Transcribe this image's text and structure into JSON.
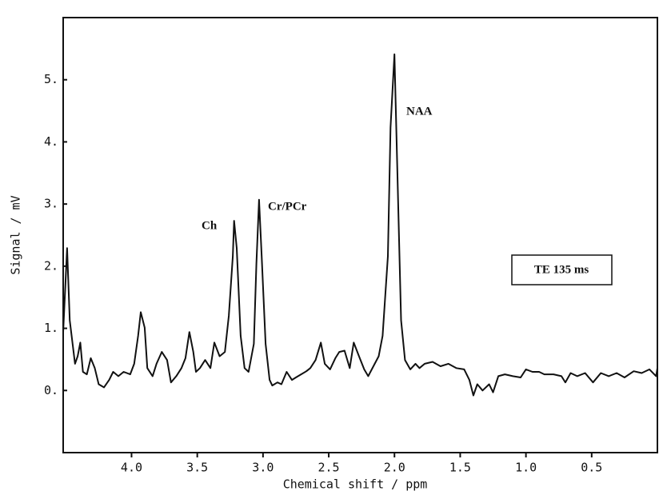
{
  "chart_data": {
    "type": "line",
    "xlabel": "Chemical shift / ppm",
    "ylabel": "Signal / mV",
    "annotations": [
      "Ch",
      "Cr/PCr",
      "NAA",
      "TE 135 ms"
    ],
    "color": "#111111",
    "xlim": [
      4.52,
      0
    ],
    "ylim": [
      -1,
      6
    ],
    "xticks": [
      {
        "value": 4,
        "label": "4.0"
      },
      {
        "value": 3.5,
        "label": "3.5"
      },
      {
        "value": 3,
        "label": "3.0"
      },
      {
        "value": 2.5,
        "label": "2.5"
      },
      {
        "value": 2,
        "label": "2.0"
      },
      {
        "value": 1.5,
        "label": "1.5"
      },
      {
        "value": 1,
        "label": "1.0"
      },
      {
        "value": 0.5,
        "label": "0.5"
      }
    ],
    "yticks": [
      {
        "value": 0,
        "label": "0."
      },
      {
        "value": 1,
        "label": "1."
      },
      {
        "value": 2,
        "label": "2."
      },
      {
        "value": 3,
        "label": "3."
      },
      {
        "value": 4,
        "label": "4."
      },
      {
        "value": 5,
        "label": "5."
      }
    ],
    "x": [
      4.52,
      4.49,
      4.47,
      4.43,
      4.41,
      4.39,
      4.37,
      4.34,
      4.31,
      4.28,
      4.25,
      4.21,
      4.17,
      4.14,
      4.1,
      4.06,
      4.01,
      3.98,
      3.95,
      3.93,
      3.9,
      3.88,
      3.84,
      3.81,
      3.77,
      3.73,
      3.7,
      3.66,
      3.62,
      3.59,
      3.56,
      3.53,
      3.51,
      3.48,
      3.44,
      3.4,
      3.37,
      3.33,
      3.29,
      3.26,
      3.23,
      3.22,
      3.2,
      3.17,
      3.14,
      3.11,
      3.07,
      3.05,
      3.03,
      3.01,
      2.98,
      2.95,
      2.93,
      2.89,
      2.86,
      2.82,
      2.78,
      2.75,
      2.71,
      2.67,
      2.64,
      2.6,
      2.56,
      2.53,
      2.49,
      2.45,
      2.42,
      2.38,
      2.34,
      2.31,
      2.27,
      2.23,
      2.2,
      2.16,
      2.12,
      2.09,
      2.05,
      2.03,
      2.0,
      1.98,
      1.95,
      1.92,
      1.88,
      1.84,
      1.81,
      1.77,
      1.71,
      1.65,
      1.59,
      1.53,
      1.47,
      1.43,
      1.4,
      1.37,
      1.33,
      1.28,
      1.25,
      1.21,
      1.16,
      1.1,
      1.04,
      1.0,
      0.95,
      0.9,
      0.86,
      0.79,
      0.73,
      0.7,
      0.66,
      0.61,
      0.55,
      0.49,
      0.43,
      0.37,
      0.31,
      0.25,
      0.18,
      0.12,
      0.06,
      0.01,
      0.0
    ],
    "values": [
      0.94,
      2.29,
      1.13,
      0.43,
      0.55,
      0.77,
      0.3,
      0.26,
      0.52,
      0.36,
      0.1,
      0.05,
      0.17,
      0.3,
      0.23,
      0.3,
      0.26,
      0.43,
      0.88,
      1.26,
      1.01,
      0.36,
      0.23,
      0.43,
      0.62,
      0.49,
      0.13,
      0.23,
      0.36,
      0.52,
      0.94,
      0.62,
      0.3,
      0.36,
      0.49,
      0.36,
      0.77,
      0.55,
      0.62,
      1.2,
      2.16,
      2.73,
      2.29,
      0.88,
      0.36,
      0.3,
      0.75,
      2.04,
      3.07,
      2.16,
      0.75,
      0.17,
      0.08,
      0.13,
      0.1,
      0.3,
      0.17,
      0.21,
      0.26,
      0.31,
      0.36,
      0.49,
      0.77,
      0.43,
      0.34,
      0.52,
      0.62,
      0.64,
      0.36,
      0.77,
      0.55,
      0.34,
      0.23,
      0.39,
      0.55,
      0.88,
      2.16,
      4.23,
      5.41,
      3.71,
      1.13,
      0.49,
      0.34,
      0.43,
      0.36,
      0.43,
      0.46,
      0.39,
      0.43,
      0.36,
      0.34,
      0.17,
      -0.08,
      0.1,
      0.0,
      0.1,
      -0.03,
      0.23,
      0.26,
      0.23,
      0.21,
      0.34,
      0.3,
      0.3,
      0.26,
      0.26,
      0.23,
      0.13,
      0.28,
      0.23,
      0.28,
      0.13,
      0.28,
      0.23,
      0.28,
      0.21,
      0.31,
      0.28,
      0.34,
      0.23,
      0.36
    ]
  }
}
